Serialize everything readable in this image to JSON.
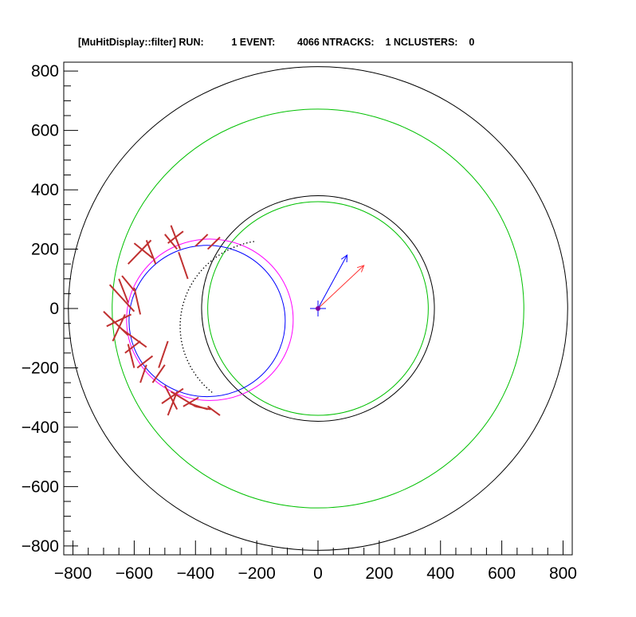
{
  "title": "[MuHitDisplay::filter] RUN:          1 EVENT:        4066 NTRACKS:    1 NCLUSTERS:    0",
  "chart_data": {
    "type": "scatter",
    "title": "[MuHitDisplay::filter] RUN:          1 EVENT:        4066 NTRACKS:    1 NCLUSTERS:    0",
    "xlabel": "",
    "ylabel": "",
    "xlim": [
      -830,
      830
    ],
    "ylim": [
      -830,
      830
    ],
    "x_ticks": [
      -800,
      -600,
      -400,
      -200,
      0,
      200,
      400,
      600,
      800
    ],
    "y_ticks": [
      -800,
      -600,
      -400,
      -200,
      0,
      200,
      400,
      600,
      800
    ],
    "x_tick_labels": [
      "−800",
      "−600",
      "−400",
      "−200",
      "0",
      "200",
      "400",
      "600",
      "800"
    ],
    "y_tick_labels": [
      "−800",
      "−600",
      "−400",
      "−200",
      "0",
      "200",
      "400",
      "600",
      "800"
    ],
    "grid": false,
    "circles": [
      {
        "cx": 0,
        "cy": 0,
        "r": 815,
        "color": "#000000"
      },
      {
        "cx": 0,
        "cy": 0,
        "r": 672,
        "color": "#00c000"
      },
      {
        "cx": 0,
        "cy": 0,
        "r": 380,
        "color": "#000000"
      },
      {
        "cx": 0,
        "cy": 0,
        "r": 360,
        "color": "#00c000"
      },
      {
        "cx": -353,
        "cy": -38,
        "r": 272,
        "color": "#ff00ff"
      },
      {
        "cx": -362,
        "cy": -42,
        "r": 255,
        "color": "#0000ff"
      }
    ],
    "vectors": [
      {
        "x0": 0,
        "y0": 0,
        "x1": 95,
        "y1": 180,
        "color": "#0000ff"
      },
      {
        "x0": 0,
        "y0": 0,
        "x1": 150,
        "y1": 145,
        "color": "#ff3333"
      }
    ],
    "origin_marker": {
      "x": 0,
      "y": 0,
      "color": "#8000a0"
    },
    "hit_segments": [
      {
        "x0": -620,
        "y0": 150,
        "x1": -545,
        "y1": 230
      },
      {
        "x0": -600,
        "y0": 220,
        "x1": -540,
        "y1": 170
      },
      {
        "x0": -560,
        "y0": 230,
        "x1": -530,
        "y1": 150
      },
      {
        "x0": -500,
        "y0": 250,
        "x1": -460,
        "y1": 200
      },
      {
        "x0": -490,
        "y0": 220,
        "x1": -440,
        "y1": 260
      },
      {
        "x0": -480,
        "y0": 280,
        "x1": -450,
        "y1": 200
      },
      {
        "x0": -455,
        "y0": 190,
        "x1": -425,
        "y1": 100
      },
      {
        "x0": -400,
        "y0": 210,
        "x1": -360,
        "y1": 250
      },
      {
        "x0": -360,
        "y0": 200,
        "x1": -320,
        "y1": 240
      },
      {
        "x0": -680,
        "y0": 80,
        "x1": -600,
        "y1": -10
      },
      {
        "x0": -650,
        "y0": 100,
        "x1": -620,
        "y1": 20
      },
      {
        "x0": -640,
        "y0": 110,
        "x1": -600,
        "y1": 60
      },
      {
        "x0": -600,
        "y0": 70,
        "x1": -580,
        "y1": -20
      },
      {
        "x0": -700,
        "y0": -10,
        "x1": -620,
        "y1": -90
      },
      {
        "x0": -690,
        "y0": -60,
        "x1": -610,
        "y1": -20
      },
      {
        "x0": -670,
        "y0": -110,
        "x1": -630,
        "y1": -20
      },
      {
        "x0": -640,
        "y0": -70,
        "x1": -560,
        "y1": -130
      },
      {
        "x0": -620,
        "y0": -120,
        "x1": -600,
        "y1": -200
      },
      {
        "x0": -630,
        "y0": -150,
        "x1": -580,
        "y1": -110
      },
      {
        "x0": -590,
        "y0": -200,
        "x1": -540,
        "y1": -160
      },
      {
        "x0": -580,
        "y0": -250,
        "x1": -560,
        "y1": -190
      },
      {
        "x0": -540,
        "y0": -250,
        "x1": -500,
        "y1": -190
      },
      {
        "x0": -520,
        "y0": -200,
        "x1": -490,
        "y1": -110
      },
      {
        "x0": -510,
        "y0": -320,
        "x1": -440,
        "y1": -270
      },
      {
        "x0": -500,
        "y0": -260,
        "x1": -460,
        "y1": -340
      },
      {
        "x0": -480,
        "y0": -280,
        "x1": -400,
        "y1": -330
      },
      {
        "x0": -460,
        "y0": -280,
        "x1": -490,
        "y1": -360
      },
      {
        "x0": -420,
        "y0": -320,
        "x1": -360,
        "y1": -340
      },
      {
        "x0": -400,
        "y0": -330,
        "x1": -350,
        "y1": -340
      },
      {
        "x0": -360,
        "y0": -330,
        "x1": -320,
        "y1": -360
      },
      {
        "x0": -440,
        "y0": -330,
        "x1": -390,
        "y1": -300
      }
    ],
    "hit_color": "#c03030",
    "dotted_arc": {
      "cx": -160,
      "cy": -60,
      "r": 290,
      "start_deg": 100,
      "end_deg": 230,
      "color": "#000000"
    }
  }
}
